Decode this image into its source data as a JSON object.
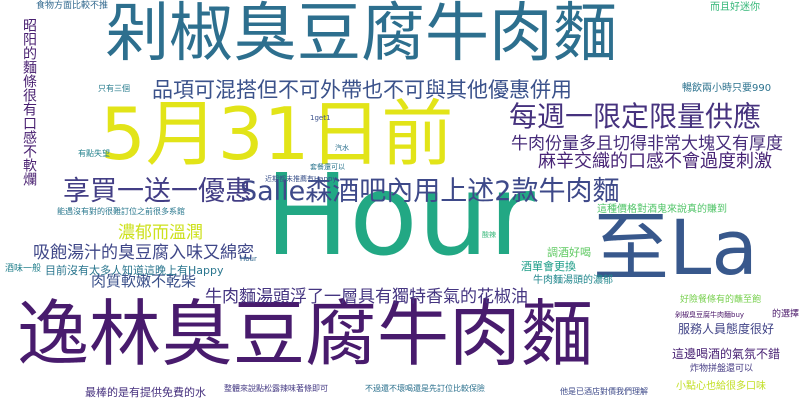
{
  "words": [
    {
      "text": "剁椒臭豆腐牛肉麵",
      "color": "#2d6f8e"
    },
    {
      "text": "逸林臭豆腐牛肉麵",
      "color": "#481b6d"
    },
    {
      "text": "Hour",
      "color": "#22a884"
    },
    {
      "text": "5月31日前",
      "color": "#e2e418"
    },
    {
      "text": "至La",
      "color": "#38588c"
    },
    {
      "text": "Salle森酒吧內用上述2款牛肉麵",
      "color": "#3e4989"
    },
    {
      "text": "品項可混搭但不可外帶也不可與其他優惠併用",
      "color": "#3b528b"
    },
    {
      "text": "每週一限定限量供應",
      "color": "#46327e"
    },
    {
      "text": "享買一送一優惠",
      "color": "#433e85"
    },
    {
      "text": "牛肉份量多且切得非常大塊又有厚度",
      "color": "#472c7a"
    },
    {
      "text": "麻辛交織的口感不會過度刺激",
      "color": "#482576"
    },
    {
      "text": "牛肉麵湯頭浮了一層具有獨特香氣的花椒油",
      "color": "#453581"
    },
    {
      "text": "吸飽湯汁的臭豆腐入味又綿密",
      "color": "#3f4788"
    },
    {
      "text": "濃郁而溫潤",
      "color": "#cde11d"
    },
    {
      "text": "肉質軟嫩不乾柴",
      "color": "#3b518b"
    },
    {
      "text": "目前沒有太多人知道這晚上有Happy",
      "color": "#2a768e"
    },
    {
      "text": "昭阳的麵條很有口感不軟爛",
      "color": "#481f70"
    },
    {
      "text": "服務人員態度很好",
      "color": "#414487"
    },
    {
      "text": "這邊喝酒的氣氛不錯",
      "color": "#482173"
    },
    {
      "text": "的選擇",
      "color": "#481668"
    },
    {
      "text": "最棒的是有提供免費的水",
      "color": "#46307e"
    },
    {
      "text": "小點心也給很多口味",
      "color": "#c2df23"
    },
    {
      "text": "暢飲兩小時只要990",
      "color": "#2c728e"
    },
    {
      "text": "調酒好喝",
      "color": "#5ec962"
    },
    {
      "text": "酒單會更換",
      "color": "#1f9e89"
    },
    {
      "text": "牛肉麵湯頭的濃郁",
      "color": "#23888e"
    },
    {
      "text": "這種價格對酒鬼來說真的賺到",
      "color": "#52c569"
    },
    {
      "text": "食物方面比較不推",
      "color": "#31688e"
    },
    {
      "text": "而且好迷你",
      "color": "#35b779"
    },
    {
      "text": "能遇沒有對的很難訂位之前很多系館",
      "color": "#2a788e"
    },
    {
      "text": "有點失望",
      "color": "#25838e"
    },
    {
      "text": "只有三個",
      "color": "#287c8e"
    },
    {
      "text": "好險餐條有的蘸至飽",
      "color": "#7ad151"
    },
    {
      "text": "炸物拼盤還可以",
      "color": "#443a83"
    },
    {
      "text": "酒味一般",
      "color": "#26828e"
    },
    {
      "text": "整體來說點松露辣味著條即可",
      "color": "#443983"
    },
    {
      "text": "不過還不壞喝還是先訂位比較保險",
      "color": "#2c718e"
    },
    {
      "text": "他是已酒店對價我們理解",
      "color": "#3e4a89"
    },
    {
      "text": "剁椒臭豆腐牛肉麵buy",
      "color": "#481467"
    },
    {
      "text": "1get1",
      "color": "#3b518b"
    },
    {
      "text": "近期都未推薦有Happy",
      "color": "#3b528b"
    },
    {
      "text": "套餐還可以",
      "color": "#2b758e"
    },
    {
      "text": "酸辣",
      "color": "#35b779"
    },
    {
      "text": "汽水",
      "color": "#2c718e"
    },
    {
      "text": "Hour",
      "color": "#31688e"
    }
  ]
}
